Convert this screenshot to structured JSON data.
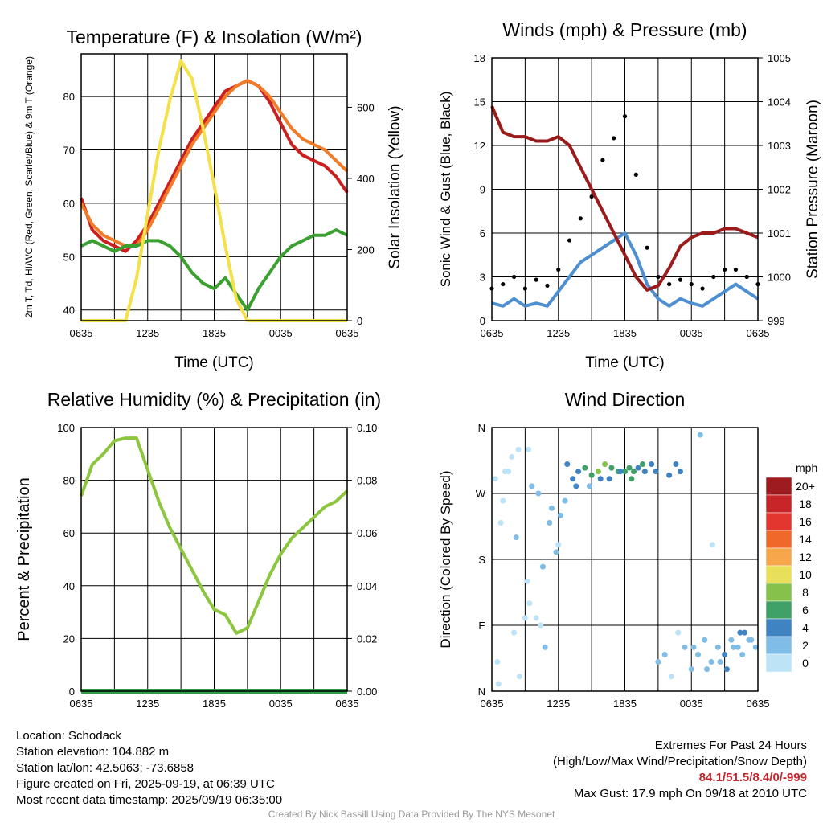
{
  "chart_data": [
    {
      "type": "line",
      "title": "Temperature (F) & Insolation (W/m²)",
      "xlabel": "Time (UTC)",
      "ylabel": "2m T, Td, HI/WC (Red, Green, Scarlet/Blue) & 9m T (Orange)",
      "y2label": "Solar Insolation (Yellow)",
      "x_ticks": [
        "0635",
        "1235",
        "1835",
        "0035",
        "0635"
      ],
      "ylim": [
        38,
        88
      ],
      "y_ticks": [
        40,
        50,
        60,
        70,
        80
      ],
      "y2lim": [
        0,
        750
      ],
      "y2_ticks": [
        0,
        200,
        400,
        600
      ],
      "series": [
        {
          "axis": "left",
          "color": "#cc2020",
          "x": [
            0,
            1,
            2,
            3,
            4,
            5,
            6,
            7,
            8,
            9,
            10,
            11,
            12,
            13,
            14,
            15,
            16,
            17,
            18,
            19,
            20,
            21,
            22,
            23,
            24
          ],
          "values": [
            61,
            55,
            53,
            52,
            51,
            53,
            56,
            60,
            64,
            68,
            72,
            75,
            78,
            81,
            82,
            83,
            82,
            79,
            75,
            71,
            69,
            68,
            67,
            65,
            62
          ]
        },
        {
          "axis": "left",
          "color": "#f07c28",
          "x": [
            0,
            1,
            2,
            3,
            4,
            5,
            6,
            7,
            8,
            9,
            10,
            11,
            12,
            13,
            14,
            15,
            16,
            17,
            18,
            19,
            20,
            21,
            22,
            23,
            24
          ],
          "values": [
            60,
            56,
            54,
            53,
            52,
            52,
            55,
            59,
            63,
            67,
            71,
            74,
            77,
            80,
            82,
            83,
            82,
            80,
            77,
            74,
            72,
            71,
            70,
            68,
            66
          ]
        },
        {
          "axis": "left",
          "color": "#3aa02f",
          "x": [
            0,
            1,
            2,
            3,
            4,
            5,
            6,
            7,
            8,
            9,
            10,
            11,
            12,
            13,
            14,
            15,
            16,
            17,
            18,
            19,
            20,
            21,
            22,
            23,
            24
          ],
          "values": [
            52,
            53,
            52,
            51,
            52,
            52,
            53,
            53,
            52,
            50,
            47,
            45,
            44,
            46,
            43,
            40,
            44,
            47,
            50,
            52,
            53,
            54,
            54,
            55,
            54
          ]
        },
        {
          "axis": "right",
          "color": "#f4e14a",
          "x": [
            0,
            1,
            2,
            3,
            4,
            5,
            6,
            7,
            8,
            9,
            10,
            11,
            12,
            13,
            14,
            15,
            16,
            17,
            18,
            19,
            20,
            21,
            22,
            23,
            24
          ],
          "values": [
            0,
            0,
            0,
            0,
            0,
            120,
            300,
            480,
            620,
            730,
            680,
            540,
            380,
            210,
            60,
            0,
            0,
            0,
            0,
            0,
            0,
            0,
            0,
            0,
            0
          ]
        }
      ]
    },
    {
      "type": "scatter",
      "title": "Winds (mph) & Pressure (mb)",
      "xlabel": "Time (UTC)",
      "ylabel": "Sonic Wind & Gust (Blue, Black)",
      "y2label": "Station Pressure (Maroon)",
      "x_ticks": [
        "0635",
        "1235",
        "1835",
        "0035",
        "0635"
      ],
      "ylim": [
        0,
        18
      ],
      "y_ticks": [
        0,
        3,
        6,
        9,
        12,
        15,
        18
      ],
      "y2lim": [
        999,
        1005
      ],
      "y2_ticks": [
        999,
        1000,
        1001,
        1002,
        1003,
        1004,
        1005
      ],
      "series": [
        {
          "name": "",
          "axis": "left",
          "kind": "line",
          "color": "#4d8fd0",
          "x": [
            0,
            1,
            2,
            3,
            4,
            5,
            6,
            7,
            8,
            9,
            10,
            11,
            12,
            13,
            14,
            15,
            16,
            17,
            18,
            19,
            20,
            21,
            22,
            23,
            24
          ],
          "values": [
            1.2,
            1.0,
            1.5,
            1.0,
            1.2,
            1.0,
            2.0,
            3.0,
            4.0,
            4.5,
            5.0,
            5.5,
            6.0,
            4.5,
            2.5,
            1.5,
            1.0,
            1.5,
            1.2,
            1.0,
            1.5,
            2.0,
            2.5,
            2.0,
            1.5
          ]
        },
        {
          "name": "",
          "axis": "left",
          "kind": "points",
          "color": "#000000",
          "x": [
            0,
            1,
            2,
            3,
            4,
            5,
            6,
            7,
            8,
            9,
            10,
            11,
            12,
            13,
            14,
            15,
            16,
            17,
            18,
            19,
            20,
            21,
            22,
            23,
            24
          ],
          "values": [
            2.2,
            2.5,
            3.0,
            2.2,
            2.8,
            2.4,
            3.5,
            5.5,
            7.0,
            8.5,
            11.0,
            12.5,
            14.0,
            10.0,
            5.0,
            3.0,
            2.5,
            2.8,
            2.5,
            2.2,
            3.0,
            3.5,
            3.5,
            3.0,
            2.5
          ]
        },
        {
          "name": "",
          "axis": "right",
          "kind": "line",
          "color": "#9b1b1b",
          "x": [
            0,
            1,
            2,
            3,
            4,
            5,
            6,
            7,
            8,
            9,
            10,
            11,
            12,
            13,
            14,
            15,
            16,
            17,
            18,
            19,
            20,
            21,
            22,
            23,
            24
          ],
          "values": [
            1003.9,
            1003.3,
            1003.2,
            1003.2,
            1003.1,
            1003.1,
            1003.2,
            1003.0,
            1002.5,
            1002.0,
            1001.5,
            1001.0,
            1000.5,
            1000.0,
            999.7,
            999.8,
            1000.2,
            1000.7,
            1000.9,
            1001.0,
            1001.0,
            1001.1,
            1001.1,
            1001.0,
            1000.9
          ]
        }
      ]
    },
    {
      "type": "line",
      "title": "Relative Humidity (%) & Precipitation (in)",
      "xlabel": "",
      "ylabel": "Percent & Precipitation",
      "x_ticks": [
        "0635",
        "1235",
        "1835",
        "0035",
        "0635"
      ],
      "ylim": [
        0,
        100
      ],
      "y_ticks": [
        0,
        20,
        40,
        60,
        80,
        100
      ],
      "y2lim": [
        0,
        0.1
      ],
      "y2_ticks": [
        "0.00",
        "0.02",
        "0.04",
        "0.06",
        "0.08",
        "0.10"
      ],
      "series": [
        {
          "axis": "left",
          "color": "#8cc63f",
          "x": [
            0,
            1,
            2,
            3,
            4,
            5,
            6,
            7,
            8,
            9,
            10,
            11,
            12,
            13,
            14,
            15,
            16,
            17,
            18,
            19,
            20,
            21,
            22,
            23,
            24
          ],
          "values": [
            74,
            86,
            90,
            95,
            96,
            96,
            84,
            72,
            62,
            54,
            46,
            38,
            31,
            29,
            22,
            24,
            34,
            44,
            52,
            58,
            62,
            66,
            70,
            72,
            76
          ]
        },
        {
          "axis": "right",
          "color": "#2e9e46",
          "x": [
            0,
            24
          ],
          "values": [
            0,
            0
          ]
        }
      ]
    },
    {
      "type": "scatter",
      "title": "Wind Direction",
      "xlabel": "",
      "ylabel": "Direction (Colored By Speed)",
      "x_ticks": [
        "0635",
        "1235",
        "1835",
        "0035",
        "0635"
      ],
      "y_ticks": [
        "N",
        "E",
        "S",
        "W",
        "N"
      ],
      "ylim": [
        0,
        360
      ],
      "colorbar": {
        "unit": "mph",
        "labels": [
          "20+",
          "18",
          "16",
          "14",
          "12",
          "10",
          "8",
          "6",
          "4",
          "2",
          "0"
        ],
        "colors": [
          "#9e1b1f",
          "#c72528",
          "#e2362e",
          "#f0692a",
          "#f7a64a",
          "#e8e05a",
          "#86c24b",
          "#3fa068",
          "#3f83c2",
          "#7fbde6",
          "#bde3f6"
        ]
      },
      "series": [
        {
          "x": [
            0.3,
            0.5,
            1.0,
            1.5,
            2.0,
            2.5,
            3.0,
            3.3,
            3.6,
            4.2,
            4.8,
            5.2,
            5.8,
            6.2,
            6.8,
            7.3,
            7.8,
            8.4,
            9.0,
            9.6,
            10.2,
            10.8,
            11.4,
            12.0,
            12.6,
            13.2,
            13.8,
            14.4,
            15.0,
            15.6,
            16.2,
            16.8,
            17.4,
            18.0,
            18.6,
            19.2,
            19.8,
            20.4,
            21.0,
            21.6,
            22.2,
            22.8,
            23.4,
            23.8,
            1.2,
            2.4,
            3.4,
            4.4,
            0.8,
            2.2,
            3.2,
            4.6,
            5.4,
            6.6,
            7.6,
            9.8,
            11.6,
            12.4,
            13.6,
            14.8,
            16.0,
            17.0,
            18.2,
            19.4,
            20.6,
            21.8,
            22.6,
            23.2,
            0.6,
            1.8,
            4.0,
            6.0,
            8.8,
            10.6,
            12.8,
            16.6,
            18.8,
            19.9,
            21.2,
            22.4
          ],
          "y": [
            290,
            40,
            260,
            300,
            80,
            20,
            100,
            330,
            280,
            270,
            60,
            230,
            190,
            240,
            310,
            290,
            300,
            305,
            295,
            300,
            310,
            305,
            300,
            300,
            290,
            305,
            300,
            310,
            40,
            50,
            20,
            80,
            60,
            30,
            50,
            70,
            40,
            60,
            50,
            70,
            60,
            80,
            70,
            60,
            300,
            330,
            120,
            90,
            230,
            210,
            150,
            170,
            250,
            260,
            280,
            290,
            300,
            305,
            310,
            300,
            295,
            300,
            60,
            30,
            40,
            60,
            50,
            70,
            10,
            320,
            100,
            200,
            280,
            290,
            300,
            310,
            350,
            200,
            30,
            80
          ],
          "speed": [
            1,
            1,
            1,
            1,
            1,
            1,
            1,
            1,
            2,
            2,
            2,
            2,
            3,
            3,
            4,
            4,
            5,
            6,
            7,
            8,
            8,
            7,
            6,
            7,
            6,
            5,
            5,
            4,
            2,
            2,
            1,
            1,
            2,
            2,
            2,
            3,
            3,
            3,
            4,
            3,
            3,
            4,
            3,
            3,
            1,
            1,
            1,
            1,
            1,
            2,
            1,
            2,
            3,
            3,
            4,
            4,
            5,
            6,
            6,
            5,
            4,
            4,
            2,
            2,
            3,
            3,
            3,
            2,
            1,
            1,
            1,
            1,
            3,
            5,
            6,
            5,
            3,
            1,
            4,
            4
          ]
        }
      ]
    }
  ],
  "info_left": {
    "location": "Location: Schodack",
    "elevation": "Station elevation: 104.882 m",
    "latlon": "Station lat/lon: 42.5063; -73.6858",
    "created": "Figure created on Fri, 2025-09-19, at 06:39 UTC",
    "recent": "Most recent data timestamp: 2025/09/19 06:35:00"
  },
  "info_right": {
    "line1": "Extremes For Past 24 Hours",
    "line2": "(High/Low/Max Wind/Precipitation/Snow Depth)",
    "extremes": "84.1/51.5/8.4/0/-999",
    "gust": "Max Gust: 17.9 mph On 09/18 at 2010 UTC"
  },
  "credit": "Created By Nick Bassill Using Data Provided By The NYS Mesonet"
}
